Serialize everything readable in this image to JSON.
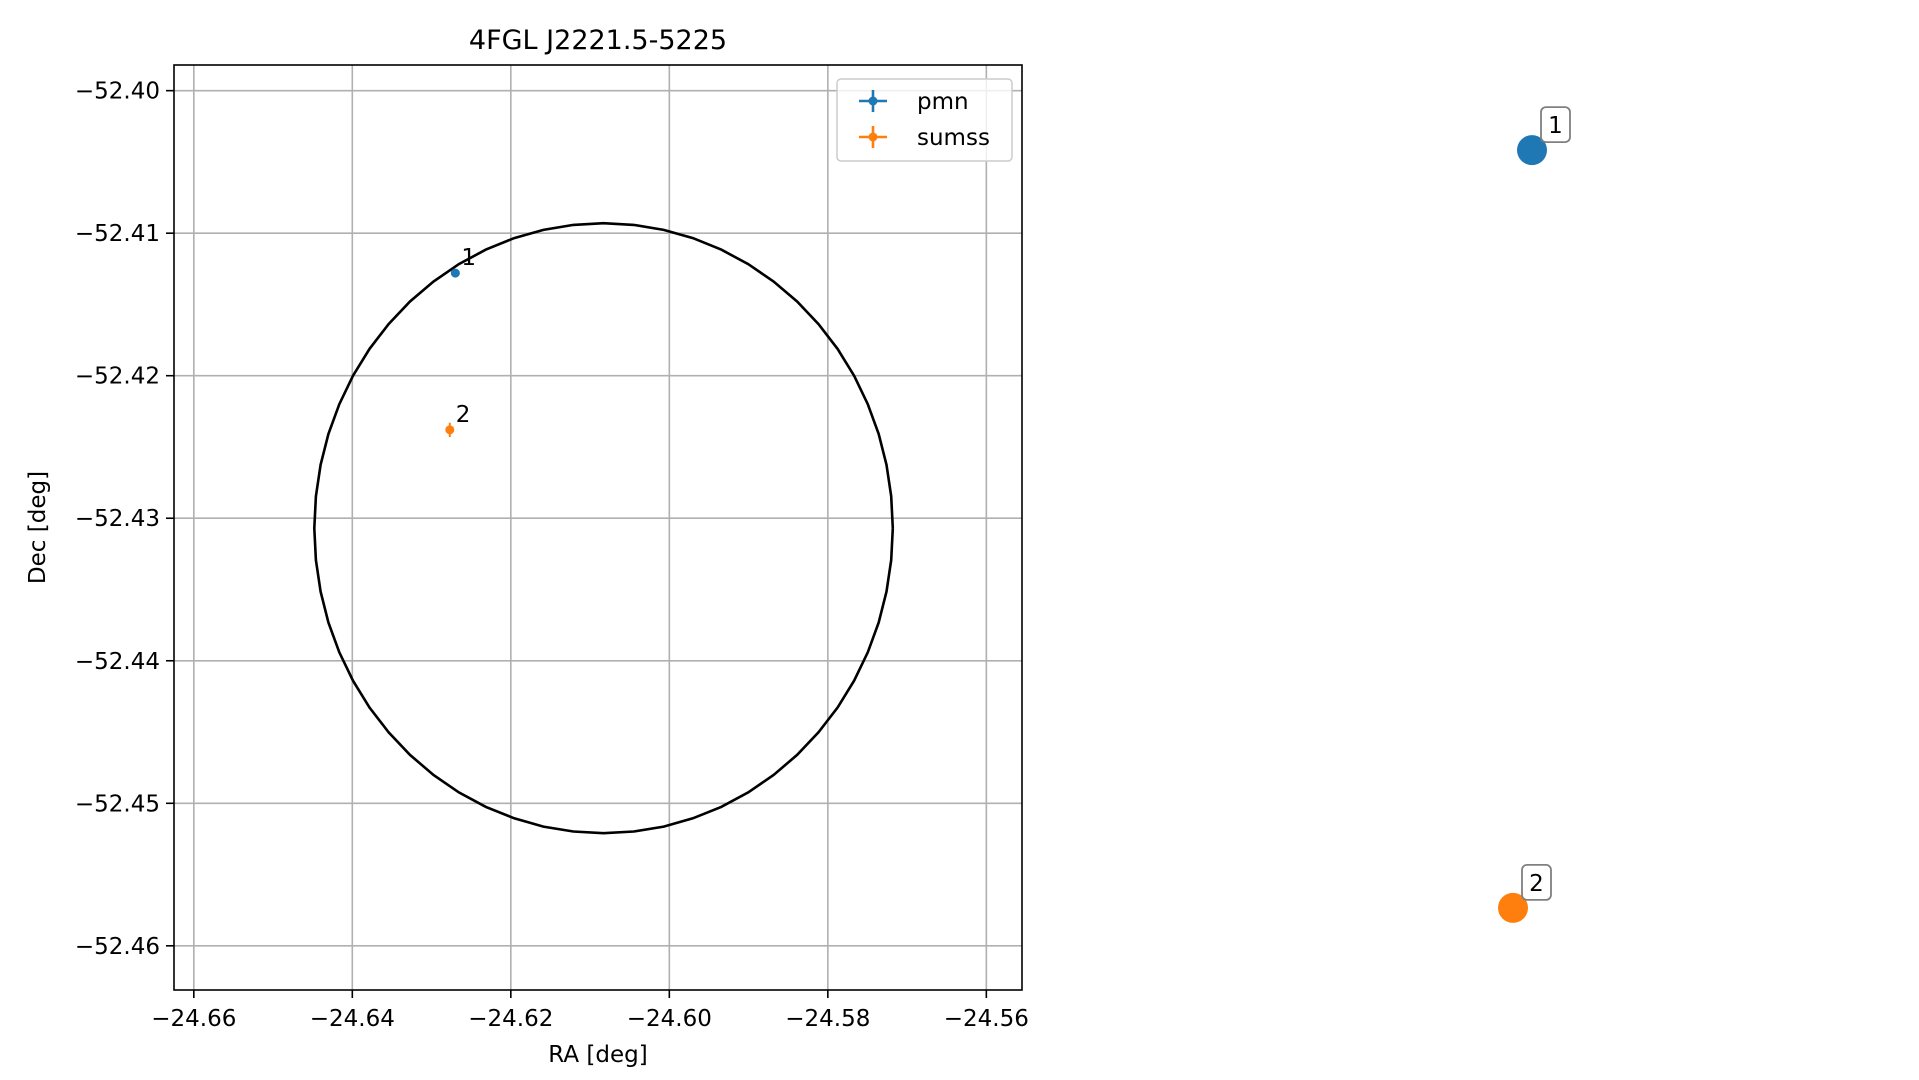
{
  "chart_data": [
    {
      "type": "scatter",
      "title": "4FGL J2221.5-5225",
      "xlabel": "RA [deg]",
      "ylabel": "Dec [deg]",
      "xlim": [
        -24.6625,
        -24.5555
      ],
      "ylim": [
        -52.4631,
        -52.3982
      ],
      "x_ticks": [
        -24.66,
        -24.64,
        -24.62,
        -24.6,
        -24.58,
        -24.56
      ],
      "x_tick_labels": [
        "−24.66",
        "−24.64",
        "−24.62",
        "−24.60",
        "−24.58",
        "−24.56"
      ],
      "y_ticks": [
        -52.4,
        -52.41,
        -52.42,
        -52.43,
        -52.44,
        -52.45,
        -52.46
      ],
      "y_tick_labels": [
        "−52.40",
        "−52.41",
        "−52.42",
        "−52.43",
        "−52.44",
        "−52.45",
        "−52.46"
      ],
      "grid": true,
      "legend_position": "top-right",
      "ellipse": {
        "center_ra": -24.6083,
        "center_dec": -52.4307,
        "ra_radius": 0.0365,
        "dec_radius": 0.0214,
        "color": "#000000"
      },
      "series": [
        {
          "name": "pmn",
          "color": "#1f77b4",
          "points": [
            {
              "label": "1",
              "ra": -24.627,
              "dec": -52.4128,
              "ra_err": 0.0003,
              "dec_err": 0.0002
            }
          ]
        },
        {
          "name": "sumss",
          "color": "#ff7f0e",
          "points": [
            {
              "label": "2",
              "ra": -24.6277,
              "dec": -52.4238,
              "ra_err": 0.0005,
              "dec_err": 0.0005
            }
          ]
        }
      ]
    },
    {
      "type": "scatter",
      "points": [
        {
          "label": "1",
          "color": "#1f77b4",
          "x": 0.6,
          "y": 0.95
        },
        {
          "label": "2",
          "color": "#ff7f0e",
          "x": 0.4,
          "y": 0.05
        }
      ]
    }
  ]
}
